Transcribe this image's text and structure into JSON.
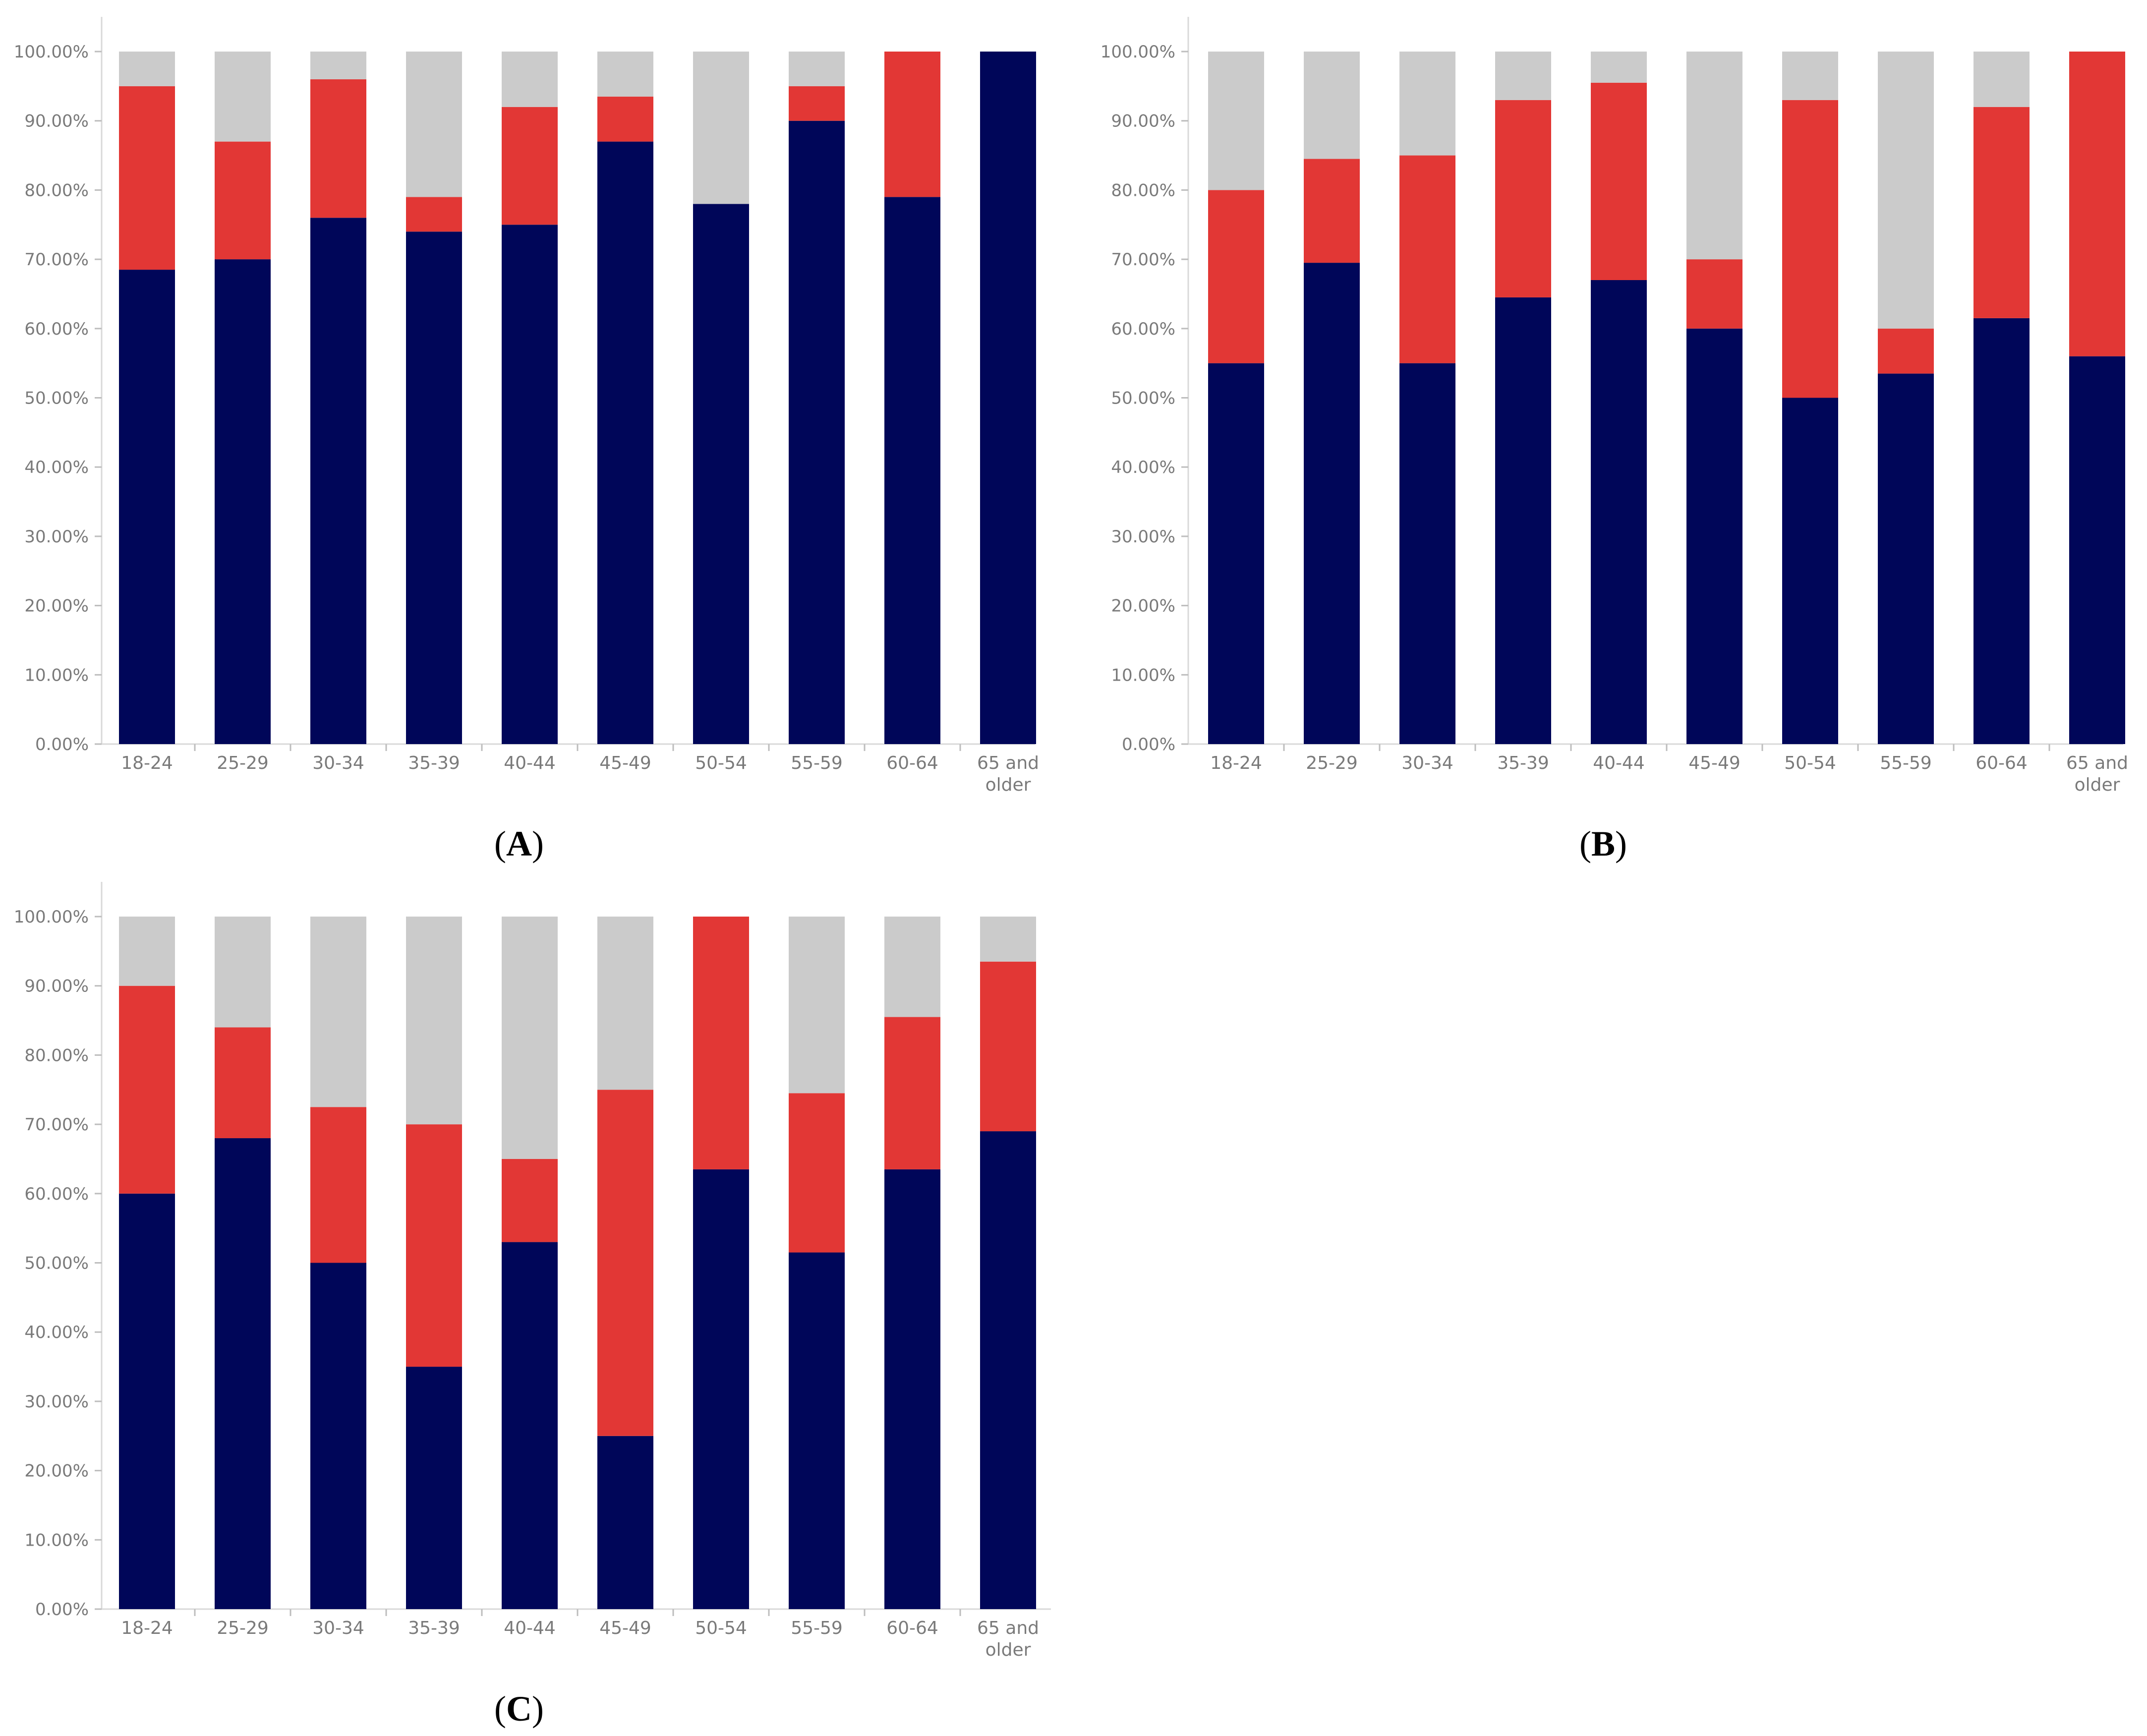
{
  "colors": {
    "series_bottom": "#000659",
    "series_middle": "#e23735",
    "series_top": "#cbcbcb",
    "axis": "#d9d9d9",
    "tick_text": "#7a7a7a"
  },
  "chart_data": [
    {
      "type": "stacked-bar",
      "panel": "A",
      "title": "",
      "xlabel": "",
      "ylabel": "",
      "ylim": [
        0,
        100
      ],
      "y_ticks": [
        "0.00%",
        "10.00%",
        "20.00%",
        "30.00%",
        "40.00%",
        "50.00%",
        "60.00%",
        "70.00%",
        "80.00%",
        "90.00%",
        "100.00%"
      ],
      "categories": [
        [
          "18-24"
        ],
        [
          "25-29"
        ],
        [
          "30-34"
        ],
        [
          "35-39"
        ],
        [
          "40-44"
        ],
        [
          "45-49"
        ],
        [
          "50-54"
        ],
        [
          "55-59"
        ],
        [
          "60-64"
        ],
        [
          "65 and",
          "older"
        ]
      ],
      "series": [
        {
          "name": "bottom",
          "color": "#000659",
          "values": [
            68.5,
            70,
            76,
            74,
            75,
            87,
            78,
            90,
            79,
            100
          ]
        },
        {
          "name": "middle",
          "color": "#e23735",
          "values": [
            26.5,
            17,
            20,
            5,
            17,
            6.5,
            0,
            5,
            21,
            0
          ]
        },
        {
          "name": "top",
          "color": "#cbcbcb",
          "values": [
            5,
            13,
            4,
            21,
            8,
            6.5,
            22,
            5,
            0,
            0
          ]
        }
      ]
    },
    {
      "type": "stacked-bar",
      "panel": "B",
      "title": "",
      "xlabel": "",
      "ylabel": "",
      "ylim": [
        0,
        100
      ],
      "y_ticks": [
        "0.00%",
        "10.00%",
        "20.00%",
        "30.00%",
        "40.00%",
        "50.00%",
        "60.00%",
        "70.00%",
        "80.00%",
        "90.00%",
        "100.00%"
      ],
      "categories": [
        [
          "18-24"
        ],
        [
          "25-29"
        ],
        [
          "30-34"
        ],
        [
          "35-39"
        ],
        [
          "40-44"
        ],
        [
          "45-49"
        ],
        [
          "50-54"
        ],
        [
          "55-59"
        ],
        [
          "60-64"
        ],
        [
          "65 and",
          "older"
        ]
      ],
      "series": [
        {
          "name": "bottom",
          "color": "#000659",
          "values": [
            55,
            69.5,
            55,
            64.5,
            67,
            60,
            50,
            53.5,
            61.5,
            56
          ]
        },
        {
          "name": "middle",
          "color": "#e23735",
          "values": [
            25,
            15,
            30,
            28.5,
            28.5,
            10,
            43,
            6.5,
            30.5,
            44
          ]
        },
        {
          "name": "top",
          "color": "#cbcbcb",
          "values": [
            20,
            15.5,
            15,
            7,
            4.5,
            30,
            7,
            40,
            8,
            0
          ]
        }
      ]
    },
    {
      "type": "stacked-bar",
      "panel": "C",
      "title": "",
      "xlabel": "",
      "ylabel": "",
      "ylim": [
        0,
        100
      ],
      "y_ticks": [
        "0.00%",
        "10.00%",
        "20.00%",
        "30.00%",
        "40.00%",
        "50.00%",
        "60.00%",
        "70.00%",
        "80.00%",
        "90.00%",
        "100.00%"
      ],
      "categories": [
        [
          "18-24"
        ],
        [
          "25-29"
        ],
        [
          "30-34"
        ],
        [
          "35-39"
        ],
        [
          "40-44"
        ],
        [
          "45-49"
        ],
        [
          "50-54"
        ],
        [
          "55-59"
        ],
        [
          "60-64"
        ],
        [
          "65 and",
          "older"
        ]
      ],
      "series": [
        {
          "name": "bottom",
          "color": "#000659",
          "values": [
            60,
            68,
            50,
            35,
            53,
            25,
            63.5,
            51.5,
            63.5,
            69
          ]
        },
        {
          "name": "middle",
          "color": "#e23735",
          "values": [
            30,
            16,
            22.5,
            35,
            12,
            50,
            36.5,
            23,
            22,
            24.5
          ]
        },
        {
          "name": "top",
          "color": "#cbcbcb",
          "values": [
            10,
            16,
            27.5,
            30,
            35,
            25,
            0,
            25.5,
            14.5,
            6.5
          ]
        }
      ]
    }
  ]
}
